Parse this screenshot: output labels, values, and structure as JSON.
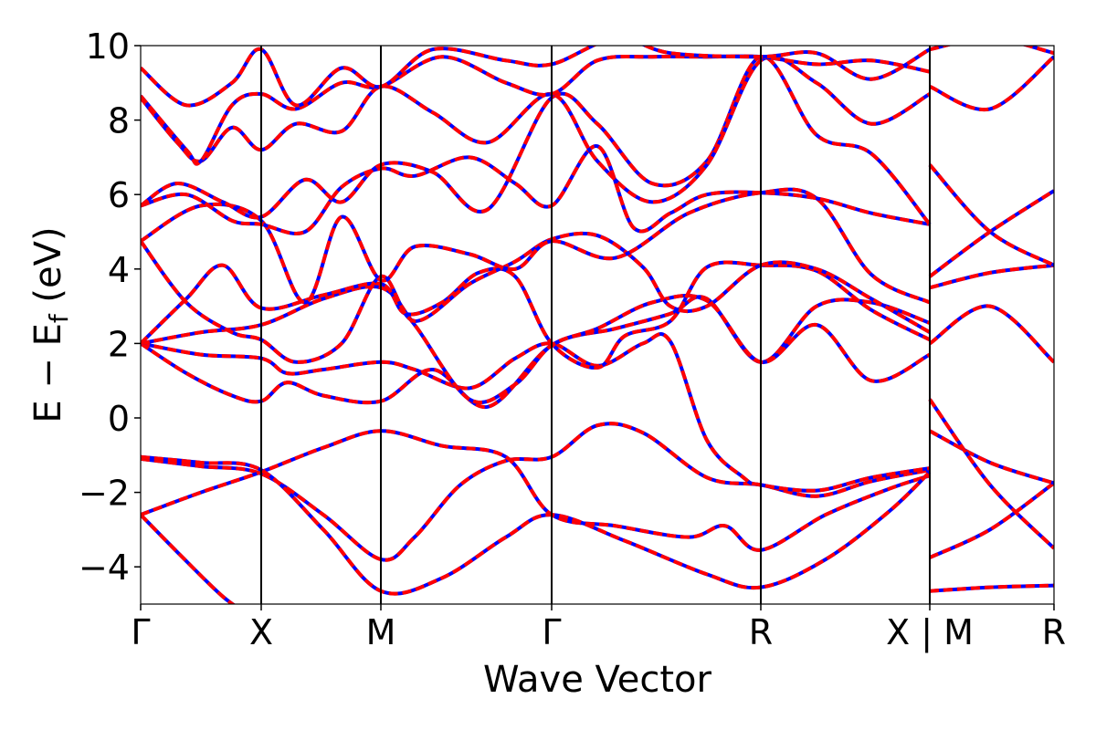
{
  "chart_data": {
    "type": "line",
    "title": "",
    "xlabel": "Wave Vector",
    "ylabel": "E − E_f (eV)",
    "ylabel_parts": {
      "prefix": "E − E",
      "subscript": "f",
      "suffix": " (eV)"
    },
    "ylim": [
      -5,
      10
    ],
    "xlim": [
      0,
      1
    ],
    "grid": false,
    "legend": "none",
    "y_ticks": [
      {
        "value": -4,
        "label": "−4"
      },
      {
        "value": -2,
        "label": "−2"
      },
      {
        "value": 0,
        "label": "0"
      },
      {
        "value": 2,
        "label": "2"
      },
      {
        "value": 4,
        "label": "4"
      },
      {
        "value": 6,
        "label": "6"
      },
      {
        "value": 8,
        "label": "8"
      },
      {
        "value": 10,
        "label": "10"
      }
    ],
    "x_ticks": [
      {
        "value": 0.0,
        "label": "Γ"
      },
      {
        "value": 0.132,
        "label": "X"
      },
      {
        "value": 0.263,
        "label": "M"
      },
      {
        "value": 0.45,
        "label": "Γ"
      },
      {
        "value": 0.679,
        "label": "R"
      },
      {
        "value": 0.864,
        "label": "X | M"
      },
      {
        "value": 1.0,
        "label": "R"
      }
    ],
    "kpoint_dividers": [
      0.132,
      0.263,
      0.45,
      0.679,
      0.864
    ],
    "series_styles": [
      {
        "role": "reference",
        "color": "#0000ff",
        "dash": "solid"
      },
      {
        "role": "overlay",
        "color": "#ff0000",
        "dash": "dashed"
      }
    ],
    "bands": [
      [
        [
          0.0,
          -2.6
        ],
        [
          0.04,
          -3.6
        ],
        [
          0.09,
          -4.8
        ],
        [
          0.12,
          -5.3
        ]
      ],
      [
        [
          0.0,
          -1.1
        ],
        [
          0.066,
          -1.3
        ],
        [
          0.132,
          -1.5
        ],
        [
          0.2,
          -2.6
        ],
        [
          0.263,
          -3.8
        ],
        [
          0.3,
          -3.2
        ],
        [
          0.35,
          -1.8
        ],
        [
          0.4,
          -1.15
        ],
        [
          0.45,
          -1.05
        ],
        [
          0.5,
          -0.2
        ],
        [
          0.55,
          -0.4
        ],
        [
          0.62,
          -1.6
        ],
        [
          0.679,
          -1.8
        ],
        [
          0.74,
          -2.1
        ],
        [
          0.8,
          -1.7
        ],
        [
          0.864,
          -1.4
        ]
      ],
      [
        [
          0.0,
          -2.6
        ],
        [
          0.066,
          -2.0
        ],
        [
          0.132,
          -1.45
        ],
        [
          0.2,
          -0.8
        ],
        [
          0.263,
          -0.35
        ],
        [
          0.33,
          -0.75
        ],
        [
          0.4,
          -1.05
        ],
        [
          0.45,
          -2.6
        ],
        [
          0.52,
          -2.9
        ],
        [
          0.6,
          -3.2
        ],
        [
          0.64,
          -2.9
        ],
        [
          0.679,
          -3.55
        ],
        [
          0.75,
          -2.6
        ],
        [
          0.82,
          -1.9
        ],
        [
          0.864,
          -1.55
        ]
      ],
      [
        [
          0.0,
          -1.05
        ],
        [
          0.066,
          -1.2
        ],
        [
          0.132,
          -1.4
        ],
        [
          0.2,
          -3.0
        ],
        [
          0.263,
          -4.65
        ],
        [
          0.33,
          -4.3
        ],
        [
          0.4,
          -3.2
        ],
        [
          0.45,
          -2.6
        ],
        [
          0.53,
          -3.3
        ],
        [
          0.62,
          -4.2
        ],
        [
          0.679,
          -4.55
        ],
        [
          0.75,
          -3.8
        ],
        [
          0.82,
          -2.5
        ],
        [
          0.864,
          -1.45
        ]
      ],
      [
        [
          0.0,
          2.0
        ],
        [
          0.066,
          1.7
        ],
        [
          0.132,
          1.6
        ],
        [
          0.16,
          1.2
        ],
        [
          0.2,
          1.3
        ],
        [
          0.263,
          1.5
        ],
        [
          0.3,
          1.3
        ],
        [
          0.36,
          0.8
        ],
        [
          0.41,
          1.6
        ],
        [
          0.45,
          2.0
        ],
        [
          0.5,
          1.4
        ],
        [
          0.55,
          2.0
        ],
        [
          0.58,
          2.05
        ],
        [
          0.62,
          -0.6
        ],
        [
          0.66,
          -1.6
        ],
        [
          0.679,
          -1.8
        ],
        [
          0.74,
          -1.95
        ],
        [
          0.8,
          -1.6
        ],
        [
          0.864,
          -1.35
        ]
      ],
      [
        [
          0.0,
          2.0
        ],
        [
          0.05,
          1.2
        ],
        [
          0.1,
          0.6
        ],
        [
          0.132,
          0.45
        ],
        [
          0.16,
          0.95
        ],
        [
          0.2,
          0.6
        ],
        [
          0.263,
          0.45
        ],
        [
          0.32,
          1.3
        ],
        [
          0.38,
          0.3
        ],
        [
          0.45,
          1.95
        ],
        [
          0.52,
          2.4
        ],
        [
          0.58,
          2.8
        ],
        [
          0.62,
          3.2
        ],
        [
          0.679,
          1.5
        ],
        [
          0.74,
          3.0
        ],
        [
          0.8,
          3.1
        ],
        [
          0.864,
          2.55
        ]
      ],
      [
        [
          0.0,
          2.0
        ],
        [
          0.066,
          2.3
        ],
        [
          0.132,
          2.5
        ],
        [
          0.2,
          3.2
        ],
        [
          0.263,
          3.5
        ],
        [
          0.3,
          2.5
        ],
        [
          0.36,
          0.5
        ],
        [
          0.41,
          0.9
        ],
        [
          0.45,
          1.95
        ],
        [
          0.5,
          2.4
        ],
        [
          0.56,
          3.1
        ],
        [
          0.62,
          3.15
        ],
        [
          0.679,
          1.5
        ],
        [
          0.74,
          2.5
        ],
        [
          0.8,
          1.0
        ],
        [
          0.864,
          1.7
        ]
      ],
      [
        [
          0.0,
          2.0
        ],
        [
          0.05,
          3.2
        ],
        [
          0.09,
          4.1
        ],
        [
          0.132,
          2.95
        ],
        [
          0.2,
          3.3
        ],
        [
          0.263,
          3.6
        ],
        [
          0.29,
          2.8
        ],
        [
          0.33,
          3.1
        ],
        [
          0.37,
          3.9
        ],
        [
          0.41,
          3.8
        ],
        [
          0.45,
          2.0
        ],
        [
          0.5,
          1.35
        ],
        [
          0.53,
          2.2
        ],
        [
          0.58,
          2.6
        ],
        [
          0.62,
          4.05
        ],
        [
          0.679,
          4.1
        ],
        [
          0.74,
          3.95
        ],
        [
          0.8,
          2.9
        ],
        [
          0.864,
          2.1
        ]
      ],
      [
        [
          0.0,
          4.75
        ],
        [
          0.05,
          3.1
        ],
        [
          0.1,
          2.3
        ],
        [
          0.132,
          2.1
        ],
        [
          0.17,
          1.5
        ],
        [
          0.22,
          2.0
        ],
        [
          0.263,
          3.8
        ],
        [
          0.3,
          2.6
        ],
        [
          0.36,
          3.6
        ],
        [
          0.41,
          4.2
        ],
        [
          0.45,
          4.8
        ],
        [
          0.5,
          4.9
        ],
        [
          0.55,
          4.05
        ],
        [
          0.58,
          3.0
        ],
        [
          0.62,
          3.0
        ],
        [
          0.679,
          4.1
        ],
        [
          0.74,
          4.0
        ],
        [
          0.8,
          3.2
        ],
        [
          0.864,
          2.3
        ]
      ],
      [
        [
          0.0,
          4.75
        ],
        [
          0.066,
          5.7
        ],
        [
          0.132,
          5.3
        ],
        [
          0.18,
          3.1
        ],
        [
          0.22,
          5.4
        ],
        [
          0.263,
          3.7
        ],
        [
          0.3,
          4.6
        ],
        [
          0.36,
          4.4
        ],
        [
          0.41,
          4.0
        ],
        [
          0.45,
          4.75
        ],
        [
          0.52,
          4.3
        ],
        [
          0.6,
          5.5
        ],
        [
          0.679,
          6.05
        ],
        [
          0.74,
          5.9
        ],
        [
          0.8,
          3.85
        ],
        [
          0.864,
          3.1
        ]
      ],
      [
        [
          0.0,
          5.7
        ],
        [
          0.05,
          6.0
        ],
        [
          0.1,
          5.3
        ],
        [
          0.132,
          5.2
        ],
        [
          0.18,
          5.0
        ],
        [
          0.22,
          6.2
        ],
        [
          0.263,
          6.7
        ],
        [
          0.3,
          6.5
        ],
        [
          0.36,
          7.0
        ],
        [
          0.41,
          6.3
        ],
        [
          0.45,
          5.7
        ],
        [
          0.5,
          7.3
        ],
        [
          0.54,
          5.1
        ],
        [
          0.58,
          5.5
        ],
        [
          0.62,
          6.0
        ],
        [
          0.679,
          6.05
        ],
        [
          0.74,
          5.9
        ],
        [
          0.8,
          5.5
        ],
        [
          0.864,
          5.2
        ]
      ],
      [
        [
          0.0,
          5.7
        ],
        [
          0.04,
          6.3
        ],
        [
          0.09,
          5.8
        ],
        [
          0.132,
          5.4
        ],
        [
          0.18,
          6.4
        ],
        [
          0.22,
          5.8
        ],
        [
          0.263,
          6.8
        ],
        [
          0.32,
          6.6
        ],
        [
          0.38,
          5.6
        ],
        [
          0.45,
          8.6
        ],
        [
          0.5,
          7.9
        ],
        [
          0.56,
          6.3
        ],
        [
          0.62,
          6.9
        ],
        [
          0.679,
          9.7
        ],
        [
          0.74,
          7.6
        ],
        [
          0.8,
          7.1
        ],
        [
          0.864,
          5.2
        ]
      ],
      [
        [
          0.0,
          8.6
        ],
        [
          0.04,
          7.4
        ],
        [
          0.066,
          6.9
        ],
        [
          0.1,
          7.8
        ],
        [
          0.132,
          7.2
        ],
        [
          0.17,
          7.9
        ],
        [
          0.22,
          7.7
        ],
        [
          0.263,
          8.9
        ],
        [
          0.32,
          8.2
        ],
        [
          0.38,
          7.4
        ],
        [
          0.45,
          8.7
        ],
        [
          0.5,
          6.9
        ],
        [
          0.56,
          5.8
        ],
        [
          0.62,
          6.8
        ],
        [
          0.679,
          9.6
        ],
        [
          0.74,
          9.0
        ],
        [
          0.8,
          7.9
        ],
        [
          0.864,
          8.7
        ]
      ],
      [
        [
          0.0,
          8.65
        ],
        [
          0.05,
          7.2
        ],
        [
          0.066,
          6.9
        ],
        [
          0.1,
          8.4
        ],
        [
          0.132,
          8.7
        ],
        [
          0.17,
          8.3
        ],
        [
          0.22,
          9.0
        ],
        [
          0.263,
          8.9
        ],
        [
          0.33,
          9.7
        ],
        [
          0.4,
          9.0
        ],
        [
          0.45,
          8.7
        ],
        [
          0.5,
          9.6
        ],
        [
          0.56,
          9.7
        ],
        [
          0.62,
          9.7
        ],
        [
          0.679,
          9.7
        ],
        [
          0.74,
          9.5
        ],
        [
          0.8,
          9.6
        ],
        [
          0.864,
          9.3
        ]
      ],
      [
        [
          0.0,
          9.4
        ],
        [
          0.05,
          8.4
        ],
        [
          0.1,
          9.0
        ],
        [
          0.132,
          9.9
        ],
        [
          0.17,
          8.4
        ],
        [
          0.22,
          9.4
        ],
        [
          0.263,
          8.9
        ],
        [
          0.32,
          9.9
        ],
        [
          0.4,
          9.6
        ],
        [
          0.45,
          9.5
        ],
        [
          0.52,
          10.2
        ],
        [
          0.58,
          9.8
        ],
        [
          0.679,
          9.7
        ],
        [
          0.74,
          9.8
        ],
        [
          0.8,
          9.1
        ],
        [
          0.864,
          9.9
        ]
      ],
      [
        [
          0.864,
          -4.65
        ],
        [
          0.93,
          -4.55
        ],
        [
          1.0,
          -4.5
        ]
      ],
      [
        [
          0.864,
          -3.75
        ],
        [
          0.93,
          -3.0
        ],
        [
          1.0,
          -1.75
        ]
      ],
      [
        [
          0.864,
          -0.35
        ],
        [
          0.93,
          -1.2
        ],
        [
          1.0,
          -1.75
        ]
      ],
      [
        [
          0.864,
          0.5
        ],
        [
          0.93,
          -1.8
        ],
        [
          1.0,
          -3.5
        ]
      ],
      [
        [
          0.864,
          2.0
        ],
        [
          0.93,
          3.0
        ],
        [
          1.0,
          1.5
        ]
      ],
      [
        [
          0.864,
          3.5
        ],
        [
          0.93,
          3.9
        ],
        [
          1.0,
          4.1
        ]
      ],
      [
        [
          0.864,
          3.8
        ],
        [
          0.93,
          5.0
        ],
        [
          1.0,
          6.1
        ]
      ],
      [
        [
          0.864,
          6.8
        ],
        [
          0.93,
          5.0
        ],
        [
          1.0,
          4.1
        ]
      ],
      [
        [
          0.864,
          8.9
        ],
        [
          0.93,
          8.3
        ],
        [
          1.0,
          9.7
        ]
      ],
      [
        [
          0.864,
          9.9
        ],
        [
          0.93,
          10.2
        ],
        [
          1.0,
          9.8
        ]
      ]
    ]
  }
}
